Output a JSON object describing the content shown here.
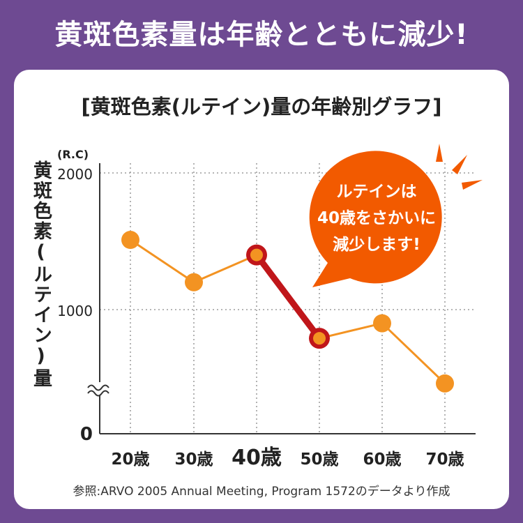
{
  "banner": "黄斑色素量は年齢とともに減少!",
  "source": "参照:ARVO 2005 Annual Meeting, Program 1572のデータより作成",
  "colors": {
    "background": "#6e4a92",
    "line": "#f39322",
    "highlight": "#c0161a",
    "bubble": "#f25a00"
  },
  "callout": [
    "ルテインは",
    "40歳をさかいに",
    "減少します!"
  ],
  "chart_data": {
    "type": "line",
    "title": "[黄斑色素(ルテイン)量の年齢別グラフ]",
    "ylabel": "黄斑色素(ルテイン)量",
    "y_unit": "(R.C)",
    "categories": [
      "20歳",
      "30歳",
      "40歳",
      "50歳",
      "60歳",
      "70歳"
    ],
    "series": [
      {
        "values": [
          1510,
          1200,
          1400,
          790,
          900,
          460
        ]
      }
    ],
    "highlight_segment": [
      "40歳",
      "50歳"
    ],
    "yticks": [
      0,
      1000,
      2000
    ],
    "y_axis_break": true,
    "grid": "dotted",
    "ylim": [
      0,
      2000
    ]
  }
}
